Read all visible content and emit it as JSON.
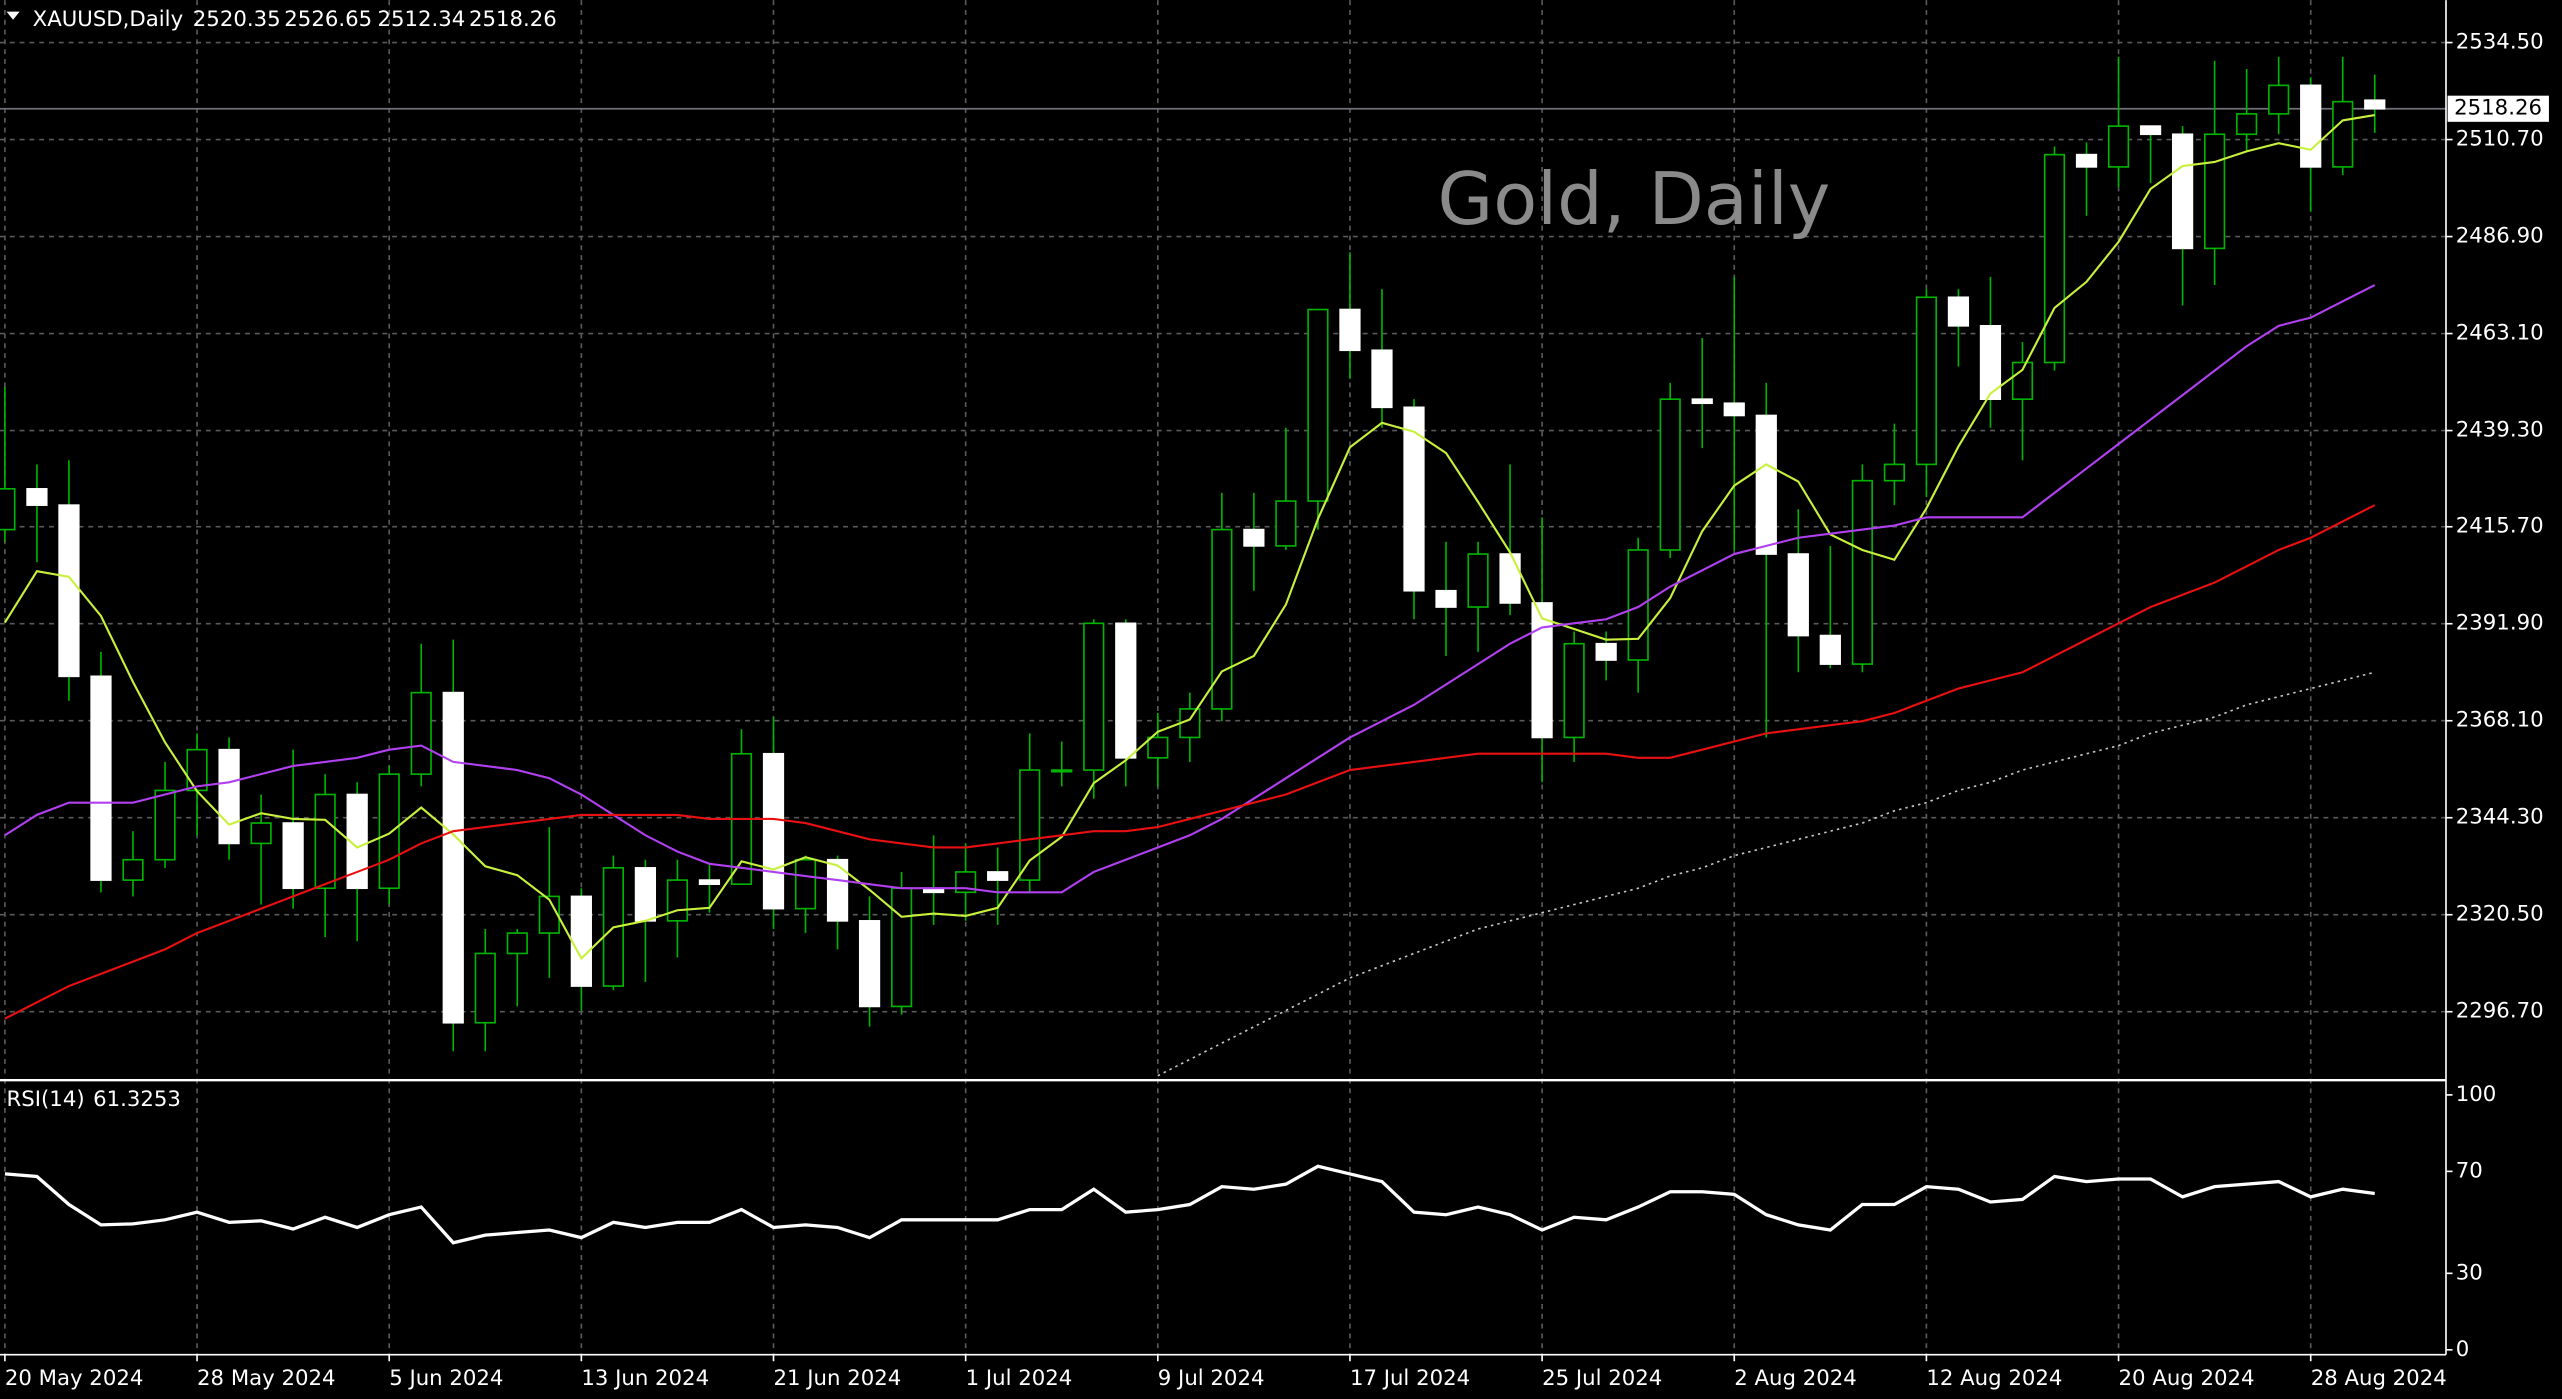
{
  "chart_data": [
    {
      "type": "candlestick",
      "title": "XAUUSD,Daily",
      "annotation": "Gold, Daily",
      "categories": [
        "20 May 2024",
        null,
        null,
        null,
        null,
        null,
        "28 May 2024",
        null,
        null,
        null,
        null,
        null,
        "5 Jun 2024",
        null,
        null,
        null,
        null,
        null,
        "13 Jun 2024",
        null,
        null,
        null,
        null,
        null,
        "21 Jun 2024",
        null,
        null,
        null,
        null,
        null,
        "1 Jul 2024",
        null,
        null,
        null,
        null,
        null,
        "9 Jul 2024",
        null,
        null,
        null,
        null,
        null,
        "17 Jul 2024",
        null,
        null,
        null,
        null,
        null,
        "25 Jul 2024",
        null,
        null,
        null,
        null,
        null,
        "2 Aug 2024",
        null,
        null,
        null,
        null,
        null,
        "12 Aug 2024",
        null,
        null,
        null,
        null,
        null,
        "20 Aug 2024",
        null,
        null,
        null,
        null,
        null,
        "28 Aug 2024",
        null,
        null
      ],
      "open": [
        2415,
        2425,
        2421,
        2379,
        2329,
        2334,
        2351,
        2361,
        2338,
        2343,
        2327,
        2350,
        2327,
        2355,
        2375,
        2294,
        2311,
        2316,
        2325,
        2303,
        2332,
        2319,
        2329,
        2328,
        2360,
        2322,
        2334,
        2319,
        2298,
        2327,
        2326,
        2331,
        2329,
        2356,
        2356,
        2392,
        2359,
        2364,
        2371,
        2415,
        2411,
        2422,
        2469,
        2459,
        2445,
        2400,
        2396,
        2409,
        2397,
        2364,
        2387,
        2383,
        2410,
        2447,
        2446,
        2443,
        2409,
        2389,
        2382,
        2427,
        2431,
        2472,
        2465,
        2447,
        2456,
        2507,
        2504,
        2514,
        2512,
        2484,
        2512,
        2517,
        2524,
        2504,
        2520.35
      ],
      "high": [
        2450,
        2431,
        2432,
        2385,
        2341,
        2358,
        2365,
        2364,
        2350,
        2361,
        2355,
        2353,
        2357,
        2387,
        2388,
        2317,
        2317,
        2342,
        2327,
        2335,
        2334,
        2334,
        2333,
        2366,
        2369,
        2335,
        2335,
        2325,
        2331,
        2340,
        2338,
        2337,
        2365,
        2363,
        2393,
        2393,
        2370,
        2375,
        2424,
        2424,
        2440,
        2469,
        2483,
        2474,
        2447,
        2412,
        2412,
        2431,
        2418,
        2390,
        2390,
        2413,
        2451,
        2462,
        2477,
        2451,
        2420,
        2411,
        2431,
        2441,
        2474,
        2474,
        2477,
        2461,
        2509,
        2510,
        2531,
        2514,
        2514,
        2530,
        2528,
        2531,
        2526,
        2531,
        2526.65
      ],
      "low": [
        2412,
        2407,
        2373,
        2326,
        2325,
        2332,
        2340,
        2334,
        2323,
        2322,
        2315,
        2314,
        2323,
        2352,
        2287,
        2287,
        2298,
        2305,
        2297,
        2302,
        2304,
        2310,
        2321,
        2328,
        2317,
        2316,
        2312,
        2293,
        2296,
        2318,
        2319,
        2318,
        2326,
        2352,
        2349,
        2352,
        2352,
        2358,
        2368,
        2400,
        2410,
        2415,
        2452,
        2440,
        2393,
        2384,
        2385,
        2394,
        2353,
        2358,
        2378,
        2375,
        2408,
        2435,
        2410,
        2364,
        2380,
        2381,
        2380,
        2421,
        2423,
        2455,
        2440,
        2432,
        2454,
        2492,
        2499,
        2500,
        2470,
        2475,
        2508,
        2512,
        2493,
        2502,
        2512.34
      ],
      "close": [
        2425,
        2421,
        2379,
        2329,
        2334,
        2351,
        2361,
        2338,
        2343,
        2327,
        2350,
        2327,
        2355,
        2375,
        2294,
        2311,
        2316,
        2325,
        2303,
        2332,
        2319,
        2329,
        2328,
        2360,
        2322,
        2334,
        2319,
        2298,
        2327,
        2326,
        2331,
        2329,
        2356,
        2356,
        2392,
        2359,
        2364,
        2371,
        2415,
        2411,
        2422,
        2469,
        2459,
        2445,
        2400,
        2396,
        2409,
        2397,
        2364,
        2387,
        2383,
        2410,
        2447,
        2446,
        2443,
        2409,
        2389,
        2382,
        2427,
        2431,
        2472,
        2465,
        2447,
        2456,
        2507,
        2504,
        2514,
        2512,
        2484,
        2512,
        2517,
        2524,
        2504,
        2520,
        2518.26
      ],
      "up_color": "#00b400",
      "down_color": "#ffffff",
      "series": [
        {
          "color": "#c8f03c",
          "values": [
            2392.2,
            2404.8,
            2403.4,
            2393.8,
            2377.6,
            2362.8,
            2350.8,
            2342.6,
            2345.4,
            2344,
            2343.8,
            2337,
            2340.4,
            2346.8,
            2340.2,
            2332.4,
            2330.2,
            2324.2,
            2309.8,
            2317.4,
            2319,
            2321.6,
            2322.2,
            2333.6,
            2331.6,
            2334.6,
            2332.6,
            2326.6,
            2320,
            2320.8,
            2320.2,
            2322.2,
            2333.8,
            2339.6,
            2352.8,
            2358.4,
            2365.4,
            2368.4,
            2380.2,
            2384,
            2396.6,
            2417.6,
            2435.2,
            2441.2,
            2439,
            2433.8,
            2421.8,
            2409.4,
            2393.2,
            2390.6,
            2388,
            2388.2,
            2398.2,
            2414.6,
            2425.8,
            2431,
            2426.8,
            2413.8,
            2410,
            2407.6,
            2420.2,
            2435.4,
            2448.4,
            2454.2,
            2469.4,
            2475.8,
            2485.6,
            2498.6,
            2504.2,
            2505.2,
            2507.8,
            2509.8,
            2508.2,
            2515.4,
            2516.7
          ]
        },
        {
          "color": "#b040f0",
          "values": [
            2340,
            2345,
            2348,
            2348,
            2348,
            2350,
            2352,
            2353,
            2355,
            2357,
            2358,
            2359,
            2361,
            2362,
            2358,
            2357,
            2356,
            2354,
            2350,
            2345,
            2340,
            2336,
            2333,
            2332,
            2331,
            2330,
            2329,
            2328,
            2327,
            2327,
            2327,
            2326,
            2326,
            2326,
            2331,
            2334,
            2337,
            2340,
            2344,
            2349,
            2354,
            2359,
            2364,
            2368,
            2372,
            2377,
            2382,
            2387,
            2391,
            2392,
            2393,
            2396,
            2401,
            2405,
            2409,
            2411,
            2413,
            2414,
            2415,
            2416,
            2418,
            2418,
            2418,
            2418,
            2424,
            2430,
            2436,
            2442,
            2448,
            2454,
            2460,
            2465,
            2467,
            2471,
            2475
          ]
        },
        {
          "color": "#e81010",
          "values": [
            2295,
            2299,
            2303,
            2306,
            2309,
            2312,
            2316,
            2319,
            2322,
            2325,
            2328,
            2331,
            2334,
            2338,
            2341,
            2342,
            2343,
            2344,
            2345,
            2345,
            2345,
            2345,
            2344,
            2344,
            2344,
            2343,
            2341,
            2339,
            2338,
            2337,
            2337,
            2338,
            2339,
            2340,
            2341,
            2341,
            2342,
            2344,
            2346,
            2348,
            2350,
            2353,
            2356,
            2357,
            2358,
            2359,
            2360,
            2360,
            2360,
            2360,
            2360,
            2359,
            2359,
            2361,
            2363,
            2365,
            2366,
            2367,
            2368,
            2370,
            2373,
            2376,
            2378,
            2380,
            2384,
            2388,
            2392,
            2396,
            2399,
            2402,
            2406,
            2410,
            2413,
            2417,
            2421
          ]
        },
        {
          "color": "#c8c8c8",
          "style": "dotted",
          "values": [
            null,
            null,
            null,
            null,
            null,
            null,
            null,
            null,
            null,
            null,
            null,
            null,
            null,
            null,
            null,
            null,
            null,
            null,
            null,
            null,
            null,
            null,
            null,
            null,
            null,
            null,
            null,
            null,
            null,
            null,
            null,
            null,
            null,
            null,
            null,
            null,
            2281,
            2285,
            2289,
            2293,
            2297,
            2301,
            2305,
            2308,
            2311,
            2314,
            2317,
            2319,
            2321,
            2323,
            2325,
            2327,
            2330,
            2332,
            2335,
            2337,
            2339,
            2341,
            2343,
            2346,
            2348,
            2351,
            2353,
            2356,
            2358,
            2360,
            2362,
            2365,
            2367,
            2369,
            2372,
            2374,
            2376,
            2378,
            2380
          ]
        }
      ],
      "ylim": [
        2280.3,
        2544.9
      ],
      "yticks": [
        {
          "value": 2534.5,
          "label": "2534.50"
        },
        {
          "value": 2510.7,
          "label": "2510.70"
        },
        {
          "value": 2486.9,
          "label": "2486.90"
        },
        {
          "value": 2463.1,
          "label": "2463.10"
        },
        {
          "value": 2439.3,
          "label": "2439.30"
        },
        {
          "value": 2415.7,
          "label": "2415.70"
        },
        {
          "value": 2391.9,
          "label": "2391.90"
        },
        {
          "value": 2368.1,
          "label": "2368.10"
        },
        {
          "value": 2344.3,
          "label": "2344.30"
        },
        {
          "value": 2320.5,
          "label": "2320.50"
        },
        {
          "value": 2296.7,
          "label": "2296.70"
        }
      ],
      "grid": true
    },
    {
      "type": "line",
      "title": "RSI(14)",
      "color": "#ffffff",
      "values": [
        69,
        68,
        57,
        49,
        49.4,
        51,
        54,
        50,
        50.6,
        47.4,
        52,
        48,
        53,
        56,
        42,
        45,
        46,
        47,
        44,
        50,
        48,
        50,
        50,
        55,
        48,
        49,
        48,
        44,
        51,
        51,
        51,
        51,
        55,
        55,
        63,
        54,
        55,
        57,
        64,
        63,
        65,
        72,
        69,
        66,
        54,
        53,
        56,
        53,
        47,
        52,
        51,
        56,
        62,
        62,
        61,
        53,
        49,
        47,
        57,
        57,
        64,
        63,
        58,
        59,
        68,
        66,
        67,
        67,
        60,
        64,
        65,
        66,
        60,
        63,
        61.3253
      ],
      "ylim": [
        0,
        100
      ],
      "yticks": [
        100,
        70,
        30,
        0
      ]
    }
  ]
}
